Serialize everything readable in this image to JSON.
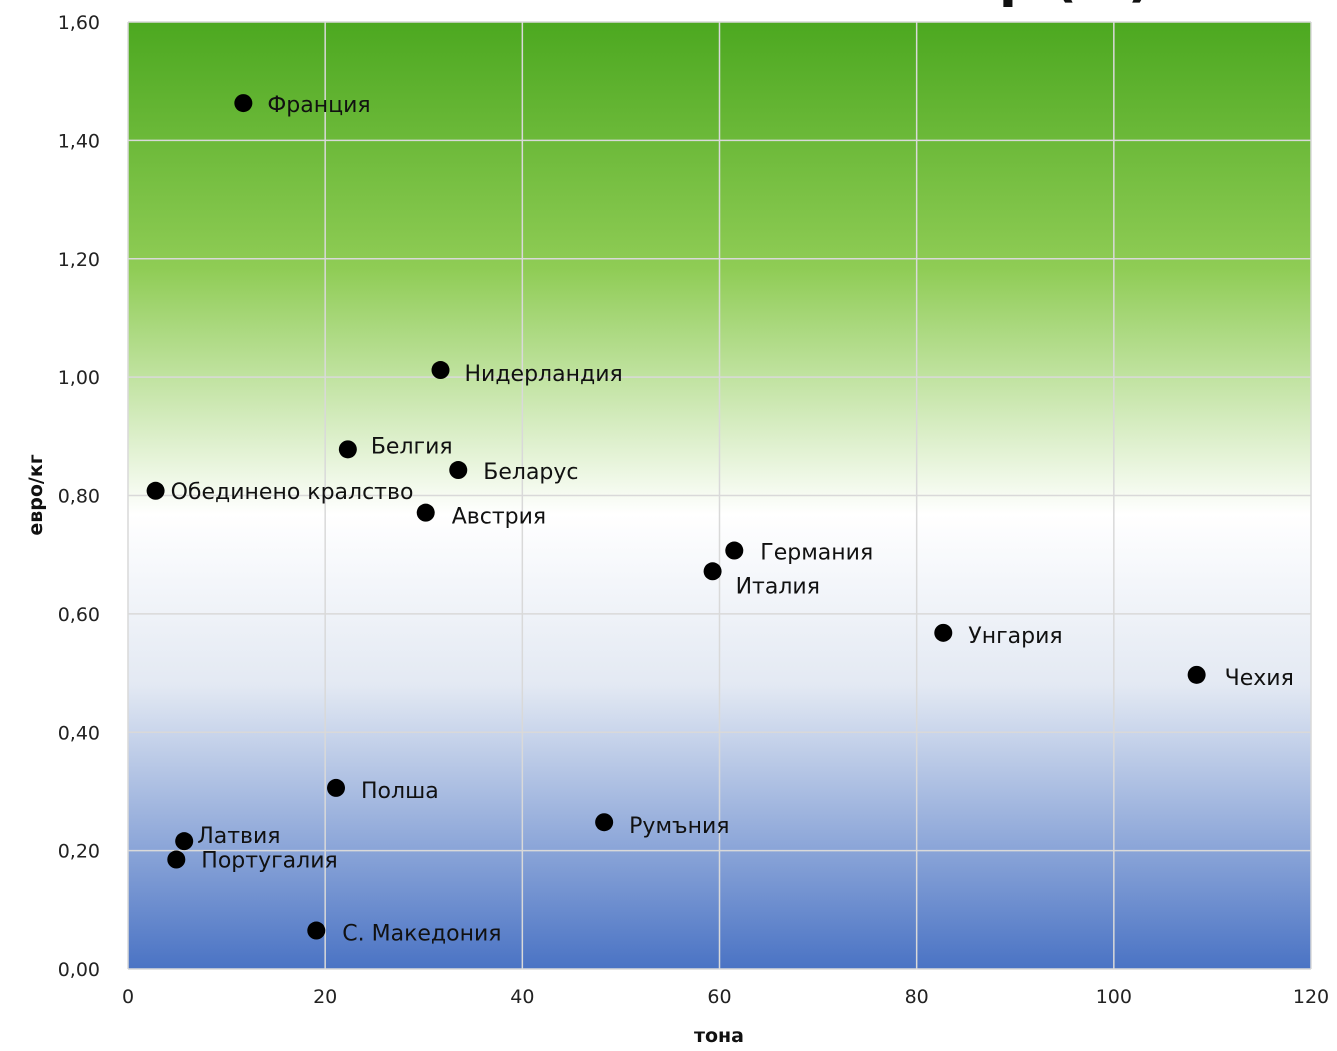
{
  "chart_data": {
    "type": "scatter",
    "title": "",
    "xlabel": "тона",
    "ylabel": "евро/кг",
    "xlim": [
      0,
      120
    ],
    "ylim": [
      0,
      1.6
    ],
    "x_ticks": [
      "0",
      "20",
      "40",
      "60",
      "80",
      "100",
      "120"
    ],
    "y_ticks": [
      "0,00",
      "0,20",
      "0,40",
      "0,60",
      "0,80",
      "1,00",
      "1,20",
      "1,40",
      "1,60"
    ],
    "grid": true,
    "legend": "none",
    "points": [
      {
        "label": "Франция",
        "x": 11.7,
        "y": 1.463
      },
      {
        "label": "Нидерландия",
        "x": 31.7,
        "y": 1.012
      },
      {
        "label": "Белгия",
        "x": 22.3,
        "y": 0.878
      },
      {
        "label": "Беларус",
        "x": 33.5,
        "y": 0.843
      },
      {
        "label": "Обединено кралство",
        "x": 2.8,
        "y": 0.808
      },
      {
        "label": "Австрия",
        "x": 30.2,
        "y": 0.771
      },
      {
        "label": "Германия",
        "x": 61.5,
        "y": 0.707
      },
      {
        "label": "Италия",
        "x": 59.3,
        "y": 0.672
      },
      {
        "label": "Унгария",
        "x": 82.7,
        "y": 0.568
      },
      {
        "label": "Чехия",
        "x": 108.4,
        "y": 0.497
      },
      {
        "label": "Полша",
        "x": 21.1,
        "y": 0.306
      },
      {
        "label": "Румъния",
        "x": 48.3,
        "y": 0.248
      },
      {
        "label": "Латвия",
        "x": 5.7,
        "y": 0.216
      },
      {
        "label": "Португалия",
        "x": 4.9,
        "y": 0.185
      },
      {
        "label": "С. Македония",
        "x": 19.1,
        "y": 0.065
      }
    ],
    "colors": {
      "top": "#4ca820",
      "mid_green": "#8fcc55",
      "white": "#ffffff",
      "light_blue": "#e3e9f3",
      "bottom": "#4a73c4",
      "grid": "#d9d9d9",
      "marker": "#000000"
    }
  }
}
